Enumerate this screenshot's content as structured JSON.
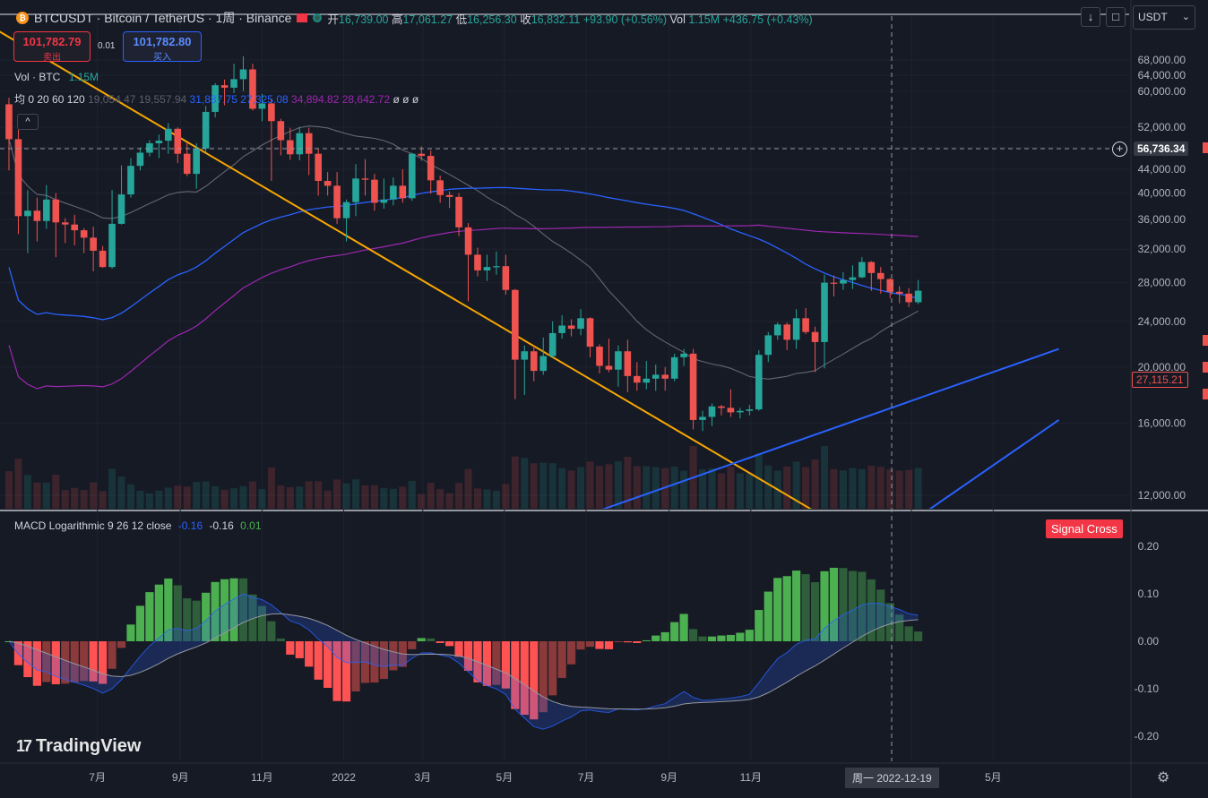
{
  "header": {
    "symbol_line": "BTCUSDT · Bitcoin / TetherUS · 1周 · Binance",
    "open_label": "开",
    "open": "16,739.00",
    "high_label": "高",
    "high": "17,061.27",
    "low_label": "低",
    "low": "16,256.30",
    "close_label": "收",
    "close": "16,832.11",
    "change": "+93.90 (+0.56%)",
    "vol_label": "Vol",
    "vol_value": "1.15M",
    "vol_change": "+436.75 (+0.43%)"
  },
  "trade": {
    "sell_price": "101,782.79",
    "sell_label": "卖出",
    "spread": "0.01",
    "buy_price": "101,782.80",
    "buy_label": "买入"
  },
  "indicators": {
    "vol_name": "Vol · BTC",
    "vol_value": "1.15M",
    "ma_name": "均 0 20 60 120",
    "ma_v1": "19,054.47",
    "ma_v2": "19,557.94",
    "ma_v3": "31,887.75",
    "ma_v4": "27,325.08",
    "ma_v5": "34,894.82",
    "ma_v6": "28,642.72",
    "ma_empty": "ø ø ø",
    "collapse_glyph": "^"
  },
  "macd": {
    "name": "MACD Logarithmic 9 26 12 close",
    "v1": "-0.16",
    "v2": "-0.16",
    "v3": "0.01",
    "signal_label": "Signal Cross"
  },
  "currency": {
    "selected": "USDT"
  },
  "toolbar": {
    "down_glyph": "↓",
    "square_glyph": "□",
    "close_glyph": "✕"
  },
  "price_axis": {
    "ticks": [
      "68,000.00",
      "64,000.00",
      "60,000.00",
      "52,000.00",
      "48,000.00",
      "44,000.00",
      "40,000.00",
      "36,000.00",
      "32,000.00",
      "28,000.00",
      "24,000.00",
      "20,000.00",
      "16,000.00",
      "12,000.00"
    ],
    "crosshair_price": "56,736.34",
    "last_price": "27,115.21"
  },
  "macd_axis": {
    "ticks": [
      "0.20",
      "0.10",
      "0.00",
      "-0.10",
      "-0.20"
    ]
  },
  "time_axis": {
    "ticks": [
      "7月",
      "9月",
      "11月",
      "2022",
      "3月",
      "5月",
      "7月",
      "9月",
      "11月",
      "3月",
      "5月"
    ],
    "crosshair_date": "周一 2022-12-19"
  },
  "branding": {
    "logo_text": "TradingView",
    "logo_mark": "17"
  },
  "colors": {
    "up": "#26a69a",
    "down": "#ef5350",
    "ma20": "#787b86",
    "ma60": "#2962ff",
    "ma120": "#9c27b0",
    "trendline_down": "#f7a600",
    "trendline_up": "#2962ff",
    "background": "#161a25"
  },
  "chart_data": {
    "type": "candlestick",
    "scale": "log",
    "ylim": [
      11000,
      72000
    ],
    "start_date": "2021-04-26",
    "interval": "1 week",
    "candles": [
      [
        57000,
        58500,
        43800,
        49600
      ],
      [
        49600,
        51500,
        34000,
        36500
      ],
      [
        36500,
        40500,
        31500,
        37300
      ],
      [
        37300,
        39300,
        33000,
        35800
      ],
      [
        35800,
        41300,
        34700,
        39000
      ],
      [
        39000,
        40000,
        31000,
        35600
      ],
      [
        35600,
        36200,
        32800,
        35300
      ],
      [
        35300,
        36700,
        32500,
        34500
      ],
      [
        34500,
        34800,
        31500,
        33500
      ],
      [
        33500,
        35000,
        29300,
        31800
      ],
      [
        31800,
        32400,
        29700,
        29800
      ],
      [
        29800,
        40500,
        29600,
        35400
      ],
      [
        35400,
        44700,
        35300,
        39800
      ],
      [
        39800,
        46000,
        39300,
        44600
      ],
      [
        44600,
        48000,
        43800,
        47000
      ],
      [
        47000,
        49400,
        46300,
        48800
      ],
      [
        48800,
        50500,
        46000,
        49300
      ],
      [
        49300,
        52900,
        46800,
        51700
      ],
      [
        51700,
        52000,
        45100,
        46800
      ],
      [
        46800,
        48900,
        42800,
        43200
      ],
      [
        43200,
        48800,
        40700,
        47800
      ],
      [
        47800,
        56600,
        47000,
        55300
      ],
      [
        55300,
        62000,
        54100,
        61500
      ],
      [
        61500,
        62900,
        56800,
        60900
      ],
      [
        60900,
        67000,
        59600,
        63000
      ],
      [
        63000,
        69000,
        60100,
        65500
      ],
      [
        65500,
        67000,
        55600,
        56000
      ],
      [
        56000,
        59400,
        53300,
        57200
      ],
      [
        57200,
        58300,
        42000,
        53300
      ],
      [
        53300,
        53800,
        46500,
        49400
      ],
      [
        49400,
        51900,
        45700,
        46700
      ],
      [
        46700,
        52100,
        45600,
        50800
      ],
      [
        50800,
        51900,
        43000,
        46800
      ],
      [
        46800,
        47800,
        39600,
        42000
      ],
      [
        42000,
        43500,
        39600,
        41200
      ],
      [
        41200,
        43500,
        35400,
        36200
      ],
      [
        36200,
        39000,
        33000,
        38600
      ],
      [
        38600,
        44900,
        36500,
        42400
      ],
      [
        42400,
        45800,
        39600,
        42200
      ],
      [
        42200,
        43200,
        37300,
        38500
      ],
      [
        38500,
        42400,
        37600,
        39000
      ],
      [
        39000,
        42600,
        38100,
        41200
      ],
      [
        41200,
        44000,
        38500,
        39200
      ],
      [
        39200,
        47000,
        38800,
        46800
      ],
      [
        46800,
        48200,
        45500,
        46400
      ],
      [
        46400,
        47400,
        39900,
        42100
      ],
      [
        42100,
        42900,
        38500,
        39700
      ],
      [
        39700,
        40300,
        37700,
        39400
      ],
      [
        39400,
        40000,
        33700,
        34900
      ],
      [
        34900,
        35500,
        26000,
        31300
      ],
      [
        31300,
        32200,
        28700,
        29400
      ],
      [
        29400,
        31300,
        28200,
        29800
      ],
      [
        29800,
        31700,
        28900,
        29900
      ],
      [
        29900,
        31300,
        26700,
        27200
      ],
      [
        27200,
        27300,
        17600,
        20600
      ],
      [
        20600,
        21800,
        17900,
        21300
      ],
      [
        21300,
        21800,
        18900,
        19700
      ],
      [
        19700,
        22500,
        19400,
        20900
      ],
      [
        20900,
        24000,
        20800,
        22900
      ],
      [
        22900,
        24600,
        22400,
        23600
      ],
      [
        23600,
        24200,
        22600,
        23300
      ],
      [
        23300,
        25200,
        22700,
        24300
      ],
      [
        24300,
        24400,
        20800,
        21700
      ],
      [
        21700,
        21900,
        19500,
        20100
      ],
      [
        20100,
        22400,
        19600,
        19800
      ],
      [
        19800,
        21800,
        18500,
        21300
      ],
      [
        21300,
        22300,
        18100,
        19300
      ],
      [
        19300,
        20400,
        18200,
        18800
      ],
      [
        18800,
        20500,
        18300,
        19100
      ],
      [
        19100,
        20200,
        18200,
        19400
      ],
      [
        19400,
        20000,
        18200,
        19100
      ],
      [
        19100,
        21100,
        18900,
        20800
      ],
      [
        20800,
        21500,
        20100,
        21100
      ],
      [
        21100,
        21500,
        15600,
        16200
      ],
      [
        16200,
        16800,
        15500,
        16400
      ],
      [
        16400,
        17300,
        15800,
        17100
      ],
      [
        17100,
        17200,
        16500,
        17000
      ],
      [
        17000,
        18300,
        16400,
        16700
      ],
      [
        16700,
        17000,
        16300,
        16800
      ],
      [
        16800,
        17200,
        16500,
        16900
      ],
      [
        16900,
        21400,
        16800,
        21000
      ],
      [
        21000,
        23000,
        20400,
        22700
      ],
      [
        22700,
        23900,
        22300,
        23700
      ],
      [
        23700,
        23900,
        21400,
        22300
      ],
      [
        22300,
        25200,
        21500,
        24300
      ],
      [
        24300,
        25300,
        22800,
        23000
      ],
      [
        23000,
        23500,
        19600,
        22100
      ],
      [
        22100,
        28900,
        19900,
        28000
      ],
      [
        28000,
        28800,
        26500,
        27900
      ],
      [
        27900,
        29200,
        27200,
        28300
      ],
      [
        28300,
        30000,
        27300,
        28600
      ],
      [
        28600,
        31000,
        28500,
        30400
      ],
      [
        30400,
        30500,
        27100,
        29100
      ],
      [
        29100,
        29800,
        26800,
        28400
      ],
      [
        28400,
        28500,
        26300,
        27000
      ],
      [
        27000,
        27600,
        25800,
        26800
      ],
      [
        26800,
        27400,
        25400,
        25900
      ],
      [
        25900,
        28300,
        25700,
        27115
      ]
    ],
    "trendline_down": {
      "from": [
        "2021-03-15",
        85000
      ],
      "to": [
        "2022-12-26",
        11000
      ]
    },
    "trendline_support": {
      "from": [
        "2022-06-27",
        11000
      ],
      "to": [
        "2023-06-19",
        21500
      ]
    },
    "trendline_support_2": {
      "from": [
        "2023-03-06",
        11000
      ],
      "to": [
        "2023-06-19",
        16200
      ]
    },
    "macd_range": [
      -0.23,
      0.25
    ]
  }
}
